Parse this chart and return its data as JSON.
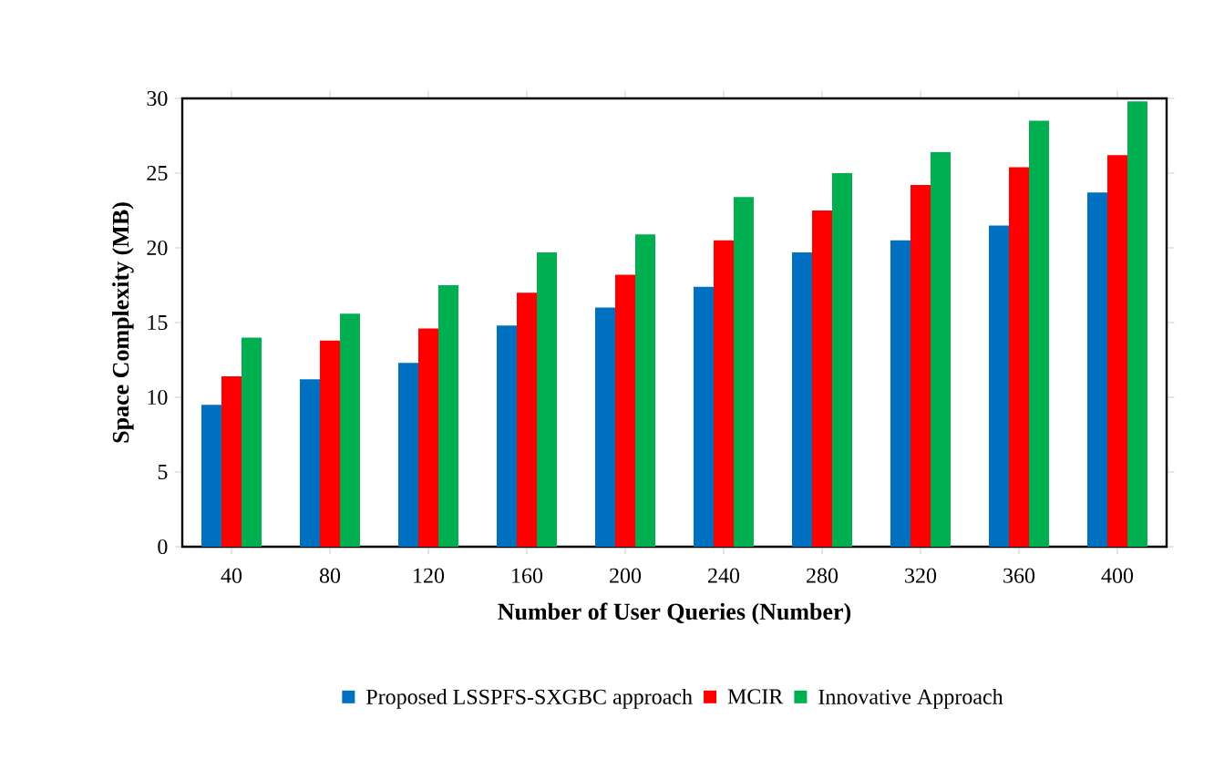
{
  "chart_data": {
    "type": "bar",
    "xlabel": "Number of User Queries (Number)",
    "ylabel": "Space Complexity (MB)",
    "categories": [
      "40",
      "80",
      "120",
      "160",
      "200",
      "240",
      "280",
      "320",
      "360",
      "400"
    ],
    "series": [
      {
        "name": "Proposed LSSPFS-SXGBC approach",
        "color": "#0070c0",
        "values": [
          9.5,
          11.2,
          12.3,
          14.8,
          16,
          17.4,
          19.7,
          20.5,
          21.5,
          23.7
        ]
      },
      {
        "name": "MCIR",
        "color": "#ff0000",
        "values": [
          11.4,
          13.8,
          14.6,
          17,
          18.2,
          20.5,
          22.5,
          24.2,
          25.4,
          26.2
        ]
      },
      {
        "name": "Innovative Approach",
        "color": "#00b050",
        "values": [
          14,
          15.6,
          17.5,
          19.7,
          20.9,
          23.4,
          25,
          26.4,
          28.5,
          29.8
        ]
      }
    ],
    "ylim": [
      0,
      30
    ],
    "yticks": [
      0,
      5,
      10,
      15,
      20,
      25,
      30
    ],
    "legend": "bottom",
    "grid": false
  }
}
